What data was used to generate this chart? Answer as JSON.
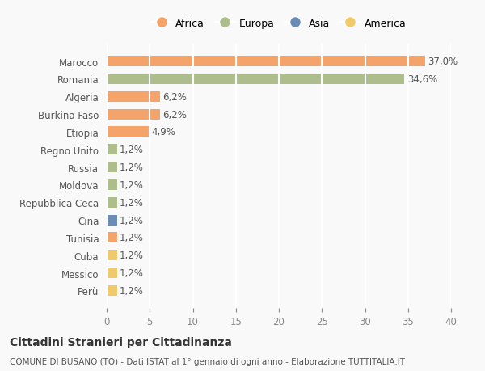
{
  "categories": [
    "Marocco",
    "Romania",
    "Algeria",
    "Burkina Faso",
    "Etiopia",
    "Regno Unito",
    "Russia",
    "Moldova",
    "Repubblica Ceca",
    "Cina",
    "Tunisia",
    "Cuba",
    "Messico",
    "Perù"
  ],
  "values": [
    37.0,
    34.6,
    6.2,
    6.2,
    4.9,
    1.2,
    1.2,
    1.2,
    1.2,
    1.2,
    1.2,
    1.2,
    1.2,
    1.2
  ],
  "labels": [
    "37,0%",
    "34,6%",
    "6,2%",
    "6,2%",
    "4,9%",
    "1,2%",
    "1,2%",
    "1,2%",
    "1,2%",
    "1,2%",
    "1,2%",
    "1,2%",
    "1,2%",
    "1,2%"
  ],
  "continents": [
    "Africa",
    "Europa",
    "Africa",
    "Africa",
    "Africa",
    "Europa",
    "Europa",
    "Europa",
    "Europa",
    "Asia",
    "Africa",
    "America",
    "America",
    "America"
  ],
  "colors": {
    "Africa": "#F4A46A",
    "Europa": "#ADBE8C",
    "Asia": "#6B8DB5",
    "America": "#F0C96B"
  },
  "legend_order": [
    "Africa",
    "Europa",
    "Asia",
    "America"
  ],
  "legend_colors": {
    "Africa": "#F4A46A",
    "Europa": "#ADBE8C",
    "Asia": "#6B8DB5",
    "America": "#F0C96B"
  },
  "xlim": [
    0,
    40
  ],
  "xticks": [
    0,
    5,
    10,
    15,
    20,
    25,
    30,
    35,
    40
  ],
  "title": "Cittadini Stranieri per Cittadinanza",
  "subtitle": "COMUNE DI BUSANO (TO) - Dati ISTAT al 1° gennaio di ogni anno - Elaborazione TUTTITALIA.IT",
  "bg_color": "#f9f9f9",
  "bar_height": 0.6,
  "grid_color": "#ffffff",
  "label_fontsize": 8.5,
  "tick_fontsize": 8.5
}
